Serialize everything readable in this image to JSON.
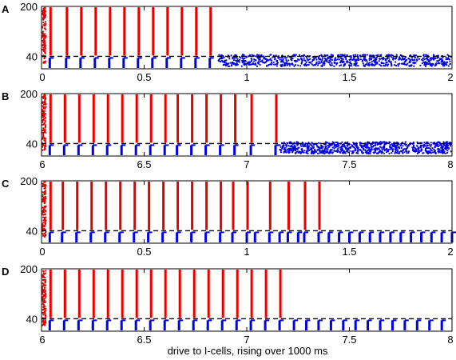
{
  "xlabel": "drive to I-cells, rising over 1000 ms",
  "colors": {
    "e_cells": "#e60000",
    "i_cells": "#0000e6",
    "dashed": "#000000"
  },
  "chart_data": [
    {
      "panel": "A",
      "type": "scatter",
      "xlim": [
        0,
        2
      ],
      "x_ticks": [
        "0",
        "0.5",
        "1",
        "1.5",
        "2"
      ],
      "y_ticks": [
        "40",
        "200"
      ],
      "dashed_level": 40,
      "e_spike_times": [
        0.04,
        0.12,
        0.19,
        0.26,
        0.33,
        0.4,
        0.47,
        0.54,
        0.61,
        0.68,
        0.75,
        0.82
      ],
      "i_spike_times": [
        0.04,
        0.12,
        0.19,
        0.26,
        0.33,
        0.4,
        0.47,
        0.54,
        0.61,
        0.68,
        0.75,
        0.82
      ],
      "asynchronous_from": 0.86
    },
    {
      "panel": "B",
      "type": "scatter",
      "xlim": [
        6,
        8
      ],
      "x_ticks": [
        "6",
        "6.5",
        "7",
        "7.5",
        "8"
      ],
      "y_ticks": [
        "40",
        "200"
      ],
      "dashed_level": 40,
      "e_spike_times": [
        6.04,
        6.11,
        6.18,
        6.25,
        6.32,
        6.39,
        6.46,
        6.53,
        6.6,
        6.66,
        6.73,
        6.8,
        6.87,
        6.94,
        7.02,
        7.14
      ],
      "i_spike_times": [
        6.04,
        6.11,
        6.18,
        6.25,
        6.32,
        6.39,
        6.46,
        6.53,
        6.6,
        6.66,
        6.73,
        6.8,
        6.87,
        6.94,
        7.02,
        7.14
      ],
      "asynchronous_from": 7.16
    },
    {
      "panel": "C",
      "type": "scatter",
      "xlim": [
        0,
        2
      ],
      "x_ticks": [
        "0",
        "0.5",
        "1",
        "1.5",
        "2"
      ],
      "y_ticks": [
        "40",
        "200"
      ],
      "dashed_level": 40,
      "e_spike_times": [
        0.04,
        0.1,
        0.17,
        0.24,
        0.31,
        0.38,
        0.45,
        0.52,
        0.59,
        0.66,
        0.73,
        0.8,
        0.87,
        0.93,
        1.0,
        1.11,
        1.2,
        1.28,
        1.35
      ],
      "i_spike_times": [
        0.04,
        0.1,
        0.17,
        0.24,
        0.31,
        0.38,
        0.45,
        0.52,
        0.59,
        0.66,
        0.73,
        0.8,
        0.87,
        0.93,
        1.0,
        1.04,
        1.11,
        1.16,
        1.2,
        1.25,
        1.28,
        1.35,
        1.4,
        1.45,
        1.5,
        1.55,
        1.6,
        1.65,
        1.7,
        1.75,
        1.8,
        1.85,
        1.9,
        1.95,
        2.0
      ]
    },
    {
      "panel": "D",
      "type": "scatter",
      "xlim": [
        6,
        8
      ],
      "x_ticks": [
        "6",
        "6.5",
        "7",
        "7.5",
        "8"
      ],
      "y_ticks": [
        "40",
        "200"
      ],
      "dashed_level": 40,
      "e_spike_times": [
        6.04,
        6.11,
        6.18,
        6.25,
        6.32,
        6.39,
        6.46,
        6.53,
        6.6,
        6.67,
        6.74,
        6.81,
        6.88,
        6.95,
        7.02,
        7.09,
        7.16
      ],
      "i_spike_times": [
        6.04,
        6.11,
        6.18,
        6.25,
        6.32,
        6.39,
        6.46,
        6.53,
        6.6,
        6.67,
        6.74,
        6.81,
        6.88,
        6.95,
        7.02,
        7.09,
        7.16,
        7.23,
        7.29,
        7.35,
        7.41,
        7.47,
        7.53,
        7.59,
        7.65,
        7.71,
        7.77,
        7.83,
        7.89,
        7.95
      ]
    }
  ]
}
